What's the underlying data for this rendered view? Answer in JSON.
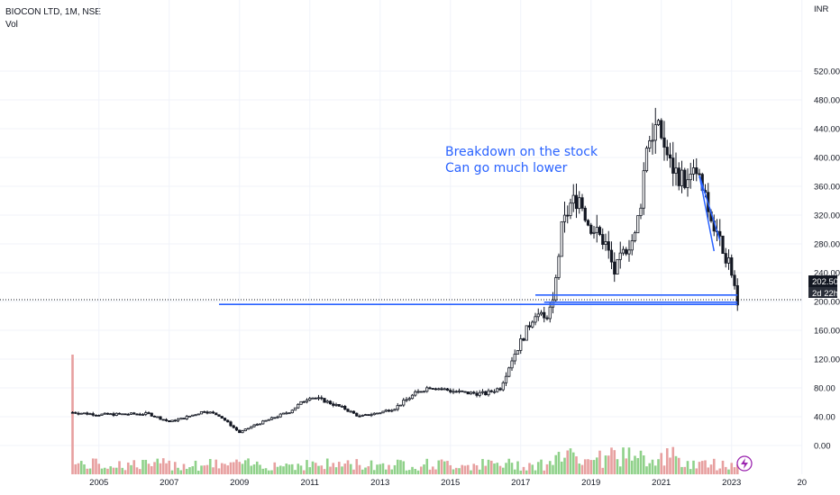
{
  "header": {
    "title": "BIOCON LTD, 1M, NSE",
    "volume_label": "Vol"
  },
  "currency": "INR",
  "last_price_label": "202.50",
  "countdown_label": "2d 22h",
  "annotation": {
    "line1": "Breakdown on the stock",
    "line2": "Can go much lower",
    "color": "#2962ff"
  },
  "colors": {
    "up": "#26a69a",
    "down": "#ef5350",
    "candle": "#131722",
    "vol_up": "#8fd18a",
    "vol_down": "#e7a0a0",
    "line": "#2962ff",
    "grid": "#f0f3fa"
  },
  "events_icon": "lightning-icon",
  "chart_data": {
    "type": "candlestick",
    "interval": "1M",
    "x_tick_labels": [
      "2005",
      "2007",
      "2009",
      "2011",
      "2013",
      "2015",
      "2017",
      "2019",
      "2021",
      "2023",
      "20"
    ],
    "y_tick_labels": [
      "0.00",
      "40.00",
      "80.00",
      "120.00",
      "160.00",
      "200.00",
      "240.00",
      "280.00",
      "320.00",
      "360.00",
      "400.00",
      "440.00",
      "480.00",
      "520.00"
    ],
    "y_range": [
      0,
      520
    ],
    "x_range": [
      "2004-04",
      "2024-06"
    ],
    "last_price": 202.5,
    "close_anchors": [
      [
        "2004-04",
        46
      ],
      [
        "2005-01",
        43
      ],
      [
        "2006-06",
        44
      ],
      [
        "2007-01",
        33
      ],
      [
        "2007-06",
        38
      ],
      [
        "2008-01",
        48
      ],
      [
        "2008-06",
        42
      ],
      [
        "2009-01",
        18
      ],
      [
        "2009-06",
        28
      ],
      [
        "2010-06",
        47
      ],
      [
        "2011-01",
        68
      ],
      [
        "2011-06",
        62
      ],
      [
        "2012-01",
        51
      ],
      [
        "2012-06",
        40
      ],
      [
        "2013-01",
        46
      ],
      [
        "2013-06",
        52
      ],
      [
        "2014-01",
        72
      ],
      [
        "2014-06",
        82
      ],
      [
        "2015-01",
        76
      ],
      [
        "2015-06",
        73
      ],
      [
        "2016-01",
        72
      ],
      [
        "2016-06",
        80
      ],
      [
        "2016-10",
        120
      ],
      [
        "2017-03",
        160
      ],
      [
        "2017-06",
        185
      ],
      [
        "2017-09",
        175
      ],
      [
        "2017-12",
        195
      ],
      [
        "2018-03",
        300
      ],
      [
        "2018-06",
        335
      ],
      [
        "2018-09",
        345
      ],
      [
        "2018-12",
        310
      ],
      [
        "2019-03",
        295
      ],
      [
        "2019-06",
        280
      ],
      [
        "2019-09",
        240
      ],
      [
        "2020-01",
        275
      ],
      [
        "2020-04",
        290
      ],
      [
        "2020-06",
        340
      ],
      [
        "2020-08",
        420
      ],
      [
        "2020-11",
        440
      ],
      [
        "2021-01",
        430
      ],
      [
        "2021-04",
        390
      ],
      [
        "2021-07",
        375
      ],
      [
        "2021-10",
        365
      ],
      [
        "2022-01",
        380
      ],
      [
        "2022-04",
        340
      ],
      [
        "2022-07",
        300
      ],
      [
        "2022-10",
        275
      ],
      [
        "2023-01",
        240
      ],
      [
        "2023-03",
        202.5
      ]
    ],
    "horizontal_levels": [
      {
        "value": 196,
        "from": "2008-06",
        "to": "2023-03"
      },
      {
        "value": 209,
        "from": "2017-06",
        "to": "2023-03"
      },
      {
        "value": 199,
        "from": "2017-09",
        "to": "2023-03"
      }
    ],
    "trend_channel": [
      {
        "from": [
          "2022-02",
          375
        ],
        "to": [
          "2022-09",
          285
        ]
      },
      {
        "from": [
          "2022-02",
          375
        ],
        "to": [
          "2022-07",
          270
        ]
      }
    ]
  }
}
